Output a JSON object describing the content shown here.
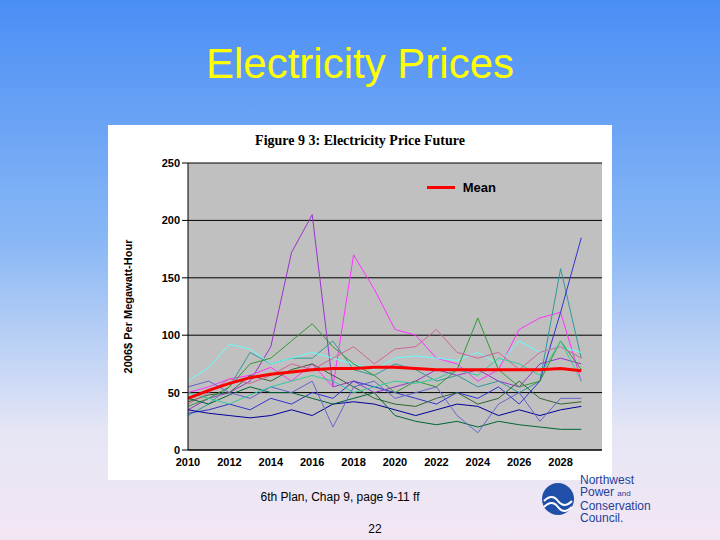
{
  "slide": {
    "title": "Electricity Prices",
    "footer": "6th Plan, Chap 9, page 9-11 ff",
    "page": "22",
    "logo": [
      "Northwest",
      "Power",
      "and",
      "Conservation",
      "Council."
    ]
  },
  "chart_data": {
    "type": "line",
    "title": "Figure 9 3: Electricity Price Future",
    "y_label": "2006$ Per Megawatt-Hour",
    "x": [
      2010,
      2011,
      2012,
      2013,
      2014,
      2015,
      2016,
      2017,
      2018,
      2019,
      2020,
      2021,
      2022,
      2023,
      2024,
      2025,
      2026,
      2027,
      2028,
      2029
    ],
    "xlim": [
      2010,
      2030
    ],
    "xticks": [
      2010,
      2012,
      2014,
      2016,
      2018,
      2020,
      2022,
      2024,
      2026,
      2028
    ],
    "ylim": [
      0,
      250
    ],
    "yticks": [
      0,
      50,
      100,
      150,
      200,
      250
    ],
    "grid": true,
    "legend": "upper right",
    "series": [
      {
        "color": "#9933cc",
        "values": [
          35,
          45,
          50,
          60,
          90,
          172,
          205,
          55,
          60,
          50,
          55,
          60,
          70,
          65,
          70,
          60,
          55,
          75,
          80,
          75
        ]
      },
      {
        "color": "#ff33ff",
        "values": [
          50,
          55,
          62,
          65,
          72,
          60,
          75,
          55,
          170,
          140,
          105,
          100,
          80,
          75,
          60,
          70,
          105,
          115,
          120,
          60
        ]
      },
      {
        "color": "#339999",
        "values": [
          30,
          40,
          55,
          85,
          75,
          80,
          80,
          95,
          70,
          65,
          75,
          70,
          60,
          65,
          55,
          60,
          50,
          60,
          158,
          80
        ]
      },
      {
        "color": "#3333cc",
        "values": [
          32,
          35,
          40,
          35,
          45,
          40,
          50,
          45,
          60,
          55,
          50,
          45,
          40,
          50,
          45,
          55,
          40,
          60,
          120,
          185
        ]
      },
      {
        "color": "#66ffff",
        "values": [
          60,
          72,
          92,
          88,
          75,
          80,
          85,
          80,
          75,
          70,
          80,
          82,
          80,
          78,
          85,
          75,
          95,
          85,
          90,
          85
        ]
      },
      {
        "color": "#339933",
        "values": [
          38,
          45,
          55,
          75,
          80,
          95,
          110,
          90,
          75,
          65,
          50,
          60,
          55,
          70,
          115,
          70,
          55,
          60,
          95,
          70
        ]
      },
      {
        "color": "#336633",
        "values": [
          42,
          48,
          50,
          65,
          60,
          70,
          75,
          65,
          55,
          45,
          40,
          38,
          45,
          50,
          40,
          45,
          60,
          45,
          40,
          42
        ]
      },
      {
        "color": "#cc6699",
        "values": [
          40,
          50,
          62,
          58,
          65,
          75,
          70,
          80,
          90,
          75,
          88,
          90,
          105,
          85,
          80,
          85,
          70,
          85,
          90,
          80
        ]
      },
      {
        "color": "#000099",
        "values": [
          35,
          32,
          30,
          28,
          30,
          35,
          30,
          40,
          42,
          40,
          35,
          30,
          35,
          40,
          38,
          30,
          35,
          30,
          35,
          38
        ]
      },
      {
        "color": "#006633",
        "values": [
          45,
          40,
          48,
          55,
          50,
          50,
          45,
          40,
          45,
          50,
          30,
          25,
          22,
          25,
          20,
          25,
          22,
          20,
          18,
          18
        ]
      },
      {
        "color": "#6666cc",
        "values": [
          55,
          60,
          50,
          45,
          55,
          50,
          60,
          20,
          55,
          60,
          45,
          50,
          55,
          30,
          15,
          40,
          50,
          25,
          45,
          45
        ]
      },
      {
        "color": "#33cc99",
        "values": [
          50,
          45,
          40,
          48,
          55,
          60,
          65,
          60,
          50,
          55,
          60,
          58,
          62,
          70,
          65,
          80,
          75,
          65,
          95,
          60
        ]
      },
      {
        "name": "Mean",
        "color": "#ff0000",
        "values": [
          45,
          52,
          58,
          63,
          66,
          68,
          70,
          71,
          71,
          72,
          72,
          71,
          70,
          70,
          70,
          70,
          70,
          70,
          71,
          69
        ]
      }
    ]
  }
}
